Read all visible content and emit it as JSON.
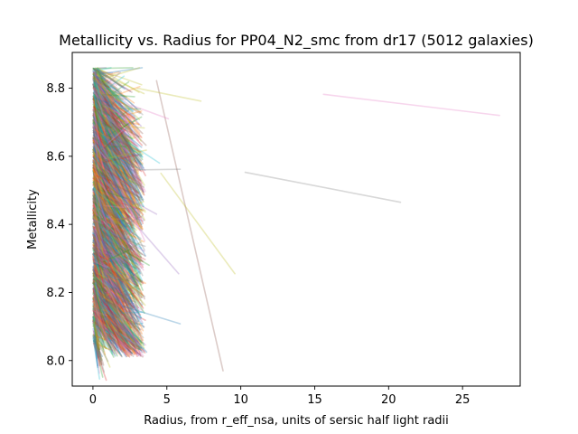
{
  "chart_data": {
    "type": "line",
    "title": "Metallicity vs. Radius for PP04_N2_smc from dr17 (5012 galaxies)",
    "xlabel": "Radius, from r_eff_nsa, units of sersic half light radii",
    "ylabel": "Metallicity",
    "xlim": [
      -1.4,
      28.9
    ],
    "ylim": [
      7.925,
      8.905
    ],
    "x_ticks": [
      0,
      5,
      10,
      15,
      20,
      25
    ],
    "y_ticks": [
      8.0,
      8.2,
      8.4,
      8.6,
      8.8
    ],
    "x_tick_labels": [
      "0",
      "5",
      "10",
      "15",
      "20",
      "25"
    ],
    "y_tick_labels": [
      "8.0",
      "8.2",
      "8.4",
      "8.6",
      "8.8"
    ],
    "grid": false,
    "legend": "none",
    "line_alpha": 0.3,
    "palette": [
      "#1f77b4",
      "#ff7f0e",
      "#2ca02c",
      "#d62728",
      "#9467bd",
      "#8c564b",
      "#e377c2",
      "#7f7f7f",
      "#bcbd22",
      "#17becf"
    ],
    "highlighted_series": [
      {
        "x": [
          15.6,
          27.5
        ],
        "y": [
          8.782,
          8.72
        ],
        "color": "#e377c2"
      },
      {
        "x": [
          10.3,
          20.8
        ],
        "y": [
          8.553,
          8.465
        ],
        "color": "#7f7f7f"
      },
      {
        "x": [
          4.3,
          8.8
        ],
        "y": [
          8.822,
          7.97
        ],
        "color": "#8c564b"
      },
      {
        "x": [
          4.6,
          9.6
        ],
        "y": [
          8.55,
          8.255
        ],
        "color": "#bcbd22"
      },
      {
        "x": [
          3.0,
          7.3
        ],
        "y": [
          8.8,
          8.762
        ],
        "color": "#bcbd22"
      },
      {
        "x": [
          2.0,
          5.9
        ],
        "y": [
          8.16,
          8.108
        ],
        "color": "#1f77b4"
      },
      {
        "x": [
          2.8,
          5.9
        ],
        "y": [
          8.56,
          8.562
        ],
        "color": "#7f7f7f"
      },
      {
        "x": [
          2.5,
          5.8
        ],
        "y": [
          8.42,
          8.255
        ],
        "color": "#9467bd"
      },
      {
        "x": [
          2.6,
          5.1
        ],
        "y": [
          8.75,
          8.71
        ],
        "color": "#e377c2"
      },
      {
        "x": [
          2.2,
          4.3
        ],
        "y": [
          8.48,
          8.43
        ],
        "color": "#9467bd"
      },
      {
        "x": [
          1.8,
          3.8
        ],
        "y": [
          8.33,
          8.28
        ],
        "color": "#2ca02c"
      },
      {
        "x": [
          2.4,
          4.5
        ],
        "y": [
          8.64,
          8.58
        ],
        "color": "#17becf"
      }
    ],
    "bulk_series_count": 5012,
    "bulk_radius_range": [
      0.0,
      3.5
    ],
    "bulk_metallicity_range": [
      8.01,
      8.86
    ]
  }
}
